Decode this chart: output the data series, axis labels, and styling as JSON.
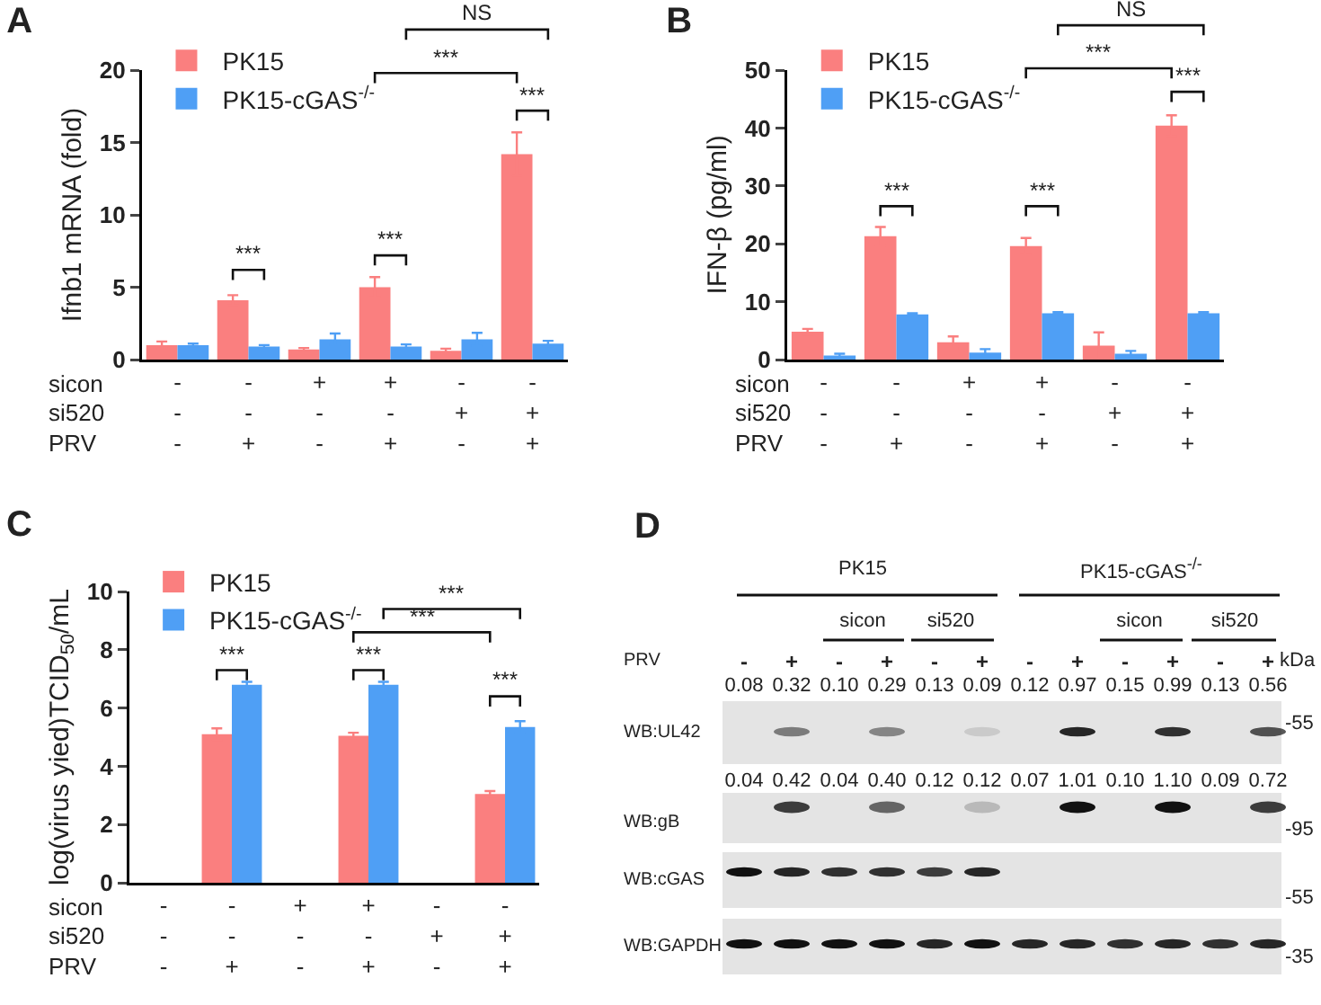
{
  "chart_data": [
    {
      "type": "bar",
      "title": "A",
      "ylabel": "Ifnb1 mRNA (fold)",
      "categories": [
        "-\n-\n-",
        "-\n-\n+",
        "+\n-\n-",
        "+\n-\n+",
        "-\n+\n-",
        "-\n+\n+"
      ],
      "ylim": [
        0,
        20
      ],
      "yticks": [
        0,
        5,
        10,
        15,
        20
      ],
      "legend": "top left",
      "grid": false,
      "series": [
        {
          "name": "PK15",
          "color": "#fa7f7f",
          "values": [
            1.0,
            4.1,
            0.7,
            5.0,
            0.6,
            14.2
          ],
          "errors": [
            0.25,
            0.35,
            0.1,
            0.7,
            0.15,
            1.5
          ]
        },
        {
          "name": "PK15-cGAS$^{-/-}$",
          "color": "#4f9ff5",
          "values": [
            1.0,
            0.9,
            1.4,
            0.9,
            1.4,
            1.1
          ],
          "errors": [
            0.1,
            0.1,
            0.4,
            0.15,
            0.45,
            0.2
          ]
        }
      ],
      "annotations": [
        "sicon",
        "si520",
        "PRV",
        "NS",
        "***",
        "***",
        "***",
        "***"
      ]
    },
    {
      "type": "bar",
      "title": "B",
      "ylabel": "IFN-β (pg/ml)",
      "categories": [
        "-\n-\n-",
        "-\n-\n+",
        "+\n-\n-",
        "+\n-\n+",
        "-\n+\n-",
        "-\n+\n+"
      ],
      "ylim": [
        0,
        50
      ],
      "yticks": [
        0,
        10,
        20,
        30,
        40,
        50
      ],
      "legend": "top left",
      "grid": false,
      "series": [
        {
          "name": "PK15",
          "color": "#fa7f7f",
          "values": [
            4.8,
            21.3,
            3.0,
            19.6,
            2.4,
            40.4
          ],
          "errors": [
            0.5,
            1.6,
            1.0,
            1.4,
            2.3,
            1.8
          ]
        },
        {
          "name": "PK15-cGAS$^{-/-}$",
          "color": "#4f9ff5",
          "values": [
            0.7,
            7.8,
            1.2,
            8.0,
            1.0,
            8.0
          ],
          "errors": [
            0.3,
            0.2,
            0.6,
            0.2,
            0.5,
            0.2
          ]
        }
      ],
      "annotations": [
        "sicon",
        "si520",
        "PRV",
        "NS",
        "***",
        "***",
        "***",
        "***"
      ]
    },
    {
      "type": "bar",
      "title": "C",
      "ylabel": "log(virus yied)TCID$_{50}$/mL",
      "categories": [
        "-\n-\n-",
        "-\n-\n+",
        "+\n-\n-",
        "+\n-\n+",
        "-\n+\n-",
        "-\n+\n+"
      ],
      "ylim": [
        0,
        10
      ],
      "yticks": [
        0,
        2,
        4,
        6,
        8,
        10
      ],
      "legend": "top left",
      "grid": false,
      "series": [
        {
          "name": "PK15",
          "color": "#fa7f7f",
          "values": [
            null,
            5.1,
            null,
            5.05,
            null,
            3.05
          ],
          "errors": [
            null,
            0.2,
            null,
            0.1,
            null,
            0.1
          ]
        },
        {
          "name": "PK15-cGAS$^{-/-}$",
          "color": "#4f9ff5",
          "values": [
            null,
            6.8,
            null,
            6.8,
            null,
            5.35
          ],
          "errors": [
            null,
            0.1,
            null,
            0.1,
            null,
            0.2
          ]
        }
      ],
      "annotations": [
        "sicon",
        "si520",
        "PRV",
        "***",
        "***",
        "***",
        "***",
        "***"
      ]
    },
    {
      "type": "other",
      "title": "D",
      "annotations": [
        "PK15",
        "PK15-cGAS$^{-/-}$",
        "sicon",
        "si520",
        "sicon",
        "si520",
        "PRV",
        "-",
        "+",
        "-",
        "+",
        "-",
        "+",
        "-",
        "+",
        "-",
        "+",
        "-",
        "+",
        "kDa",
        "0.08",
        "0.32",
        "0.10",
        "0.29",
        "0.13",
        "0.09",
        "0.12",
        "0.97",
        "0.15",
        "0.99",
        "0.13",
        "0.56",
        "WB:UL42",
        "-55",
        "0.04",
        "0.42",
        "0.04",
        "0.40",
        "0.12",
        "0.12",
        "0.07",
        "1.01",
        "0.10",
        "1.10",
        "0.09",
        "0.72",
        "WB:gB",
        "-95",
        "WB:cGAS",
        "-55",
        "WB:GAPDH",
        "-35"
      ]
    }
  ]
}
